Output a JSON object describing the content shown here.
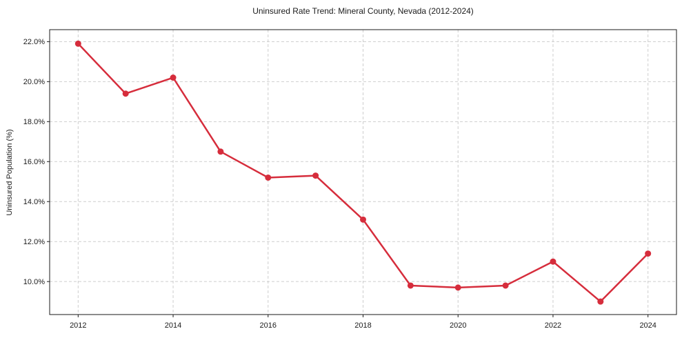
{
  "chart_data": {
    "type": "line",
    "title": "Uninsured Rate Trend: Mineral County, Nevada (2012-2024)",
    "xlabel": "",
    "ylabel": "Uninsured Population (%)",
    "x": [
      2012,
      2013,
      2014,
      2015,
      2016,
      2017,
      2018,
      2019,
      2020,
      2021,
      2022,
      2023,
      2024
    ],
    "series": [
      {
        "name": "Uninsured rate",
        "values": [
          21.9,
          19.4,
          20.2,
          16.5,
          15.2,
          15.3,
          13.1,
          9.8,
          9.7,
          9.8,
          11.0,
          9.0,
          11.4
        ]
      }
    ],
    "xticks": [
      2012,
      2014,
      2016,
      2018,
      2020,
      2022,
      2024
    ],
    "yticks": [
      10,
      12,
      14,
      16,
      18,
      20,
      22
    ],
    "ytick_suffix": "%",
    "ytick_decimals": 1,
    "xlim": [
      2011.4,
      2024.6
    ],
    "ylim": [
      8.35,
      22.6
    ],
    "grid": true,
    "legend": false,
    "line_color": "#d62d3c",
    "marker": "circle",
    "grid_color": "#cdcdcd",
    "axis_color": "#1a1a1a",
    "background_color": "#ffffff"
  }
}
